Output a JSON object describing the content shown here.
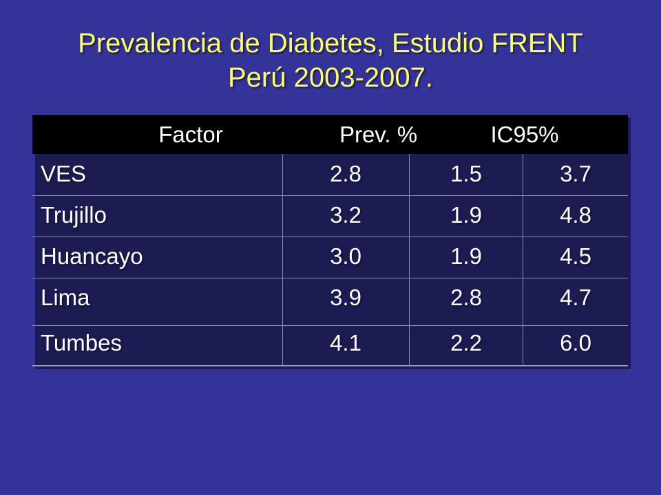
{
  "slide": {
    "title_line1": "Prevalencia de Diabetes, Estudio FRENT",
    "title_line2": "Perú 2003-2007."
  },
  "table": {
    "headers": {
      "factor": "Factor",
      "prev": "Prev. %",
      "ic": "IC95%"
    },
    "rows": [
      {
        "factor": "VES",
        "prev": "2.8",
        "ic_low": "1.5",
        "ic_high": "3.7"
      },
      {
        "factor": "Trujillo",
        "prev": "3.2",
        "ic_low": "1.9",
        "ic_high": "4.8"
      },
      {
        "factor": "Huancayo",
        "prev": "3.0",
        "ic_low": "1.9",
        "ic_high": "4.5"
      },
      {
        "factor": "Lima",
        "prev": "3.9",
        "ic_low": "2.8",
        "ic_high": "4.7"
      },
      {
        "factor": "Tumbes",
        "prev": "4.1",
        "ic_low": "2.2",
        "ic_high": "6.0"
      }
    ]
  },
  "colors": {
    "background": "#333399",
    "title": "#ffff66",
    "header_background": "#000000",
    "text": "#ffffff"
  }
}
